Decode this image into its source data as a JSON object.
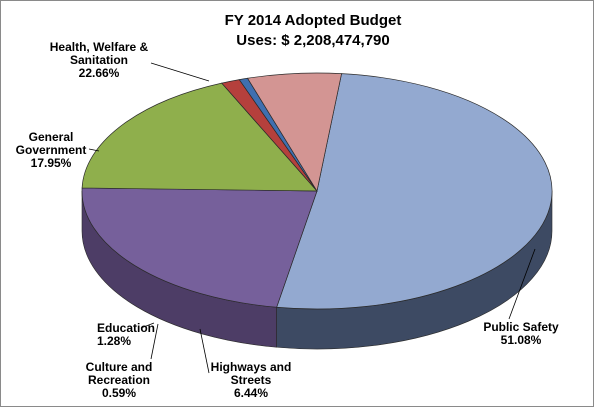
{
  "chart_data": {
    "type": "pie",
    "title": "FY 2014 Adopted Budget",
    "subtitle": "Uses: $ 2,208,474,790",
    "slices": [
      {
        "label_lines": [
          "Public Safety"
        ],
        "value": 51.08,
        "value_label": "51.08%",
        "color": "#93a9d0",
        "side_color": "#3d4a63"
      },
      {
        "label_lines": [
          "Health, Welfare &",
          "Sanitation"
        ],
        "value": 22.66,
        "value_label": "22.66%",
        "color": "#76609b",
        "side_color": "#4d3d66"
      },
      {
        "label_lines": [
          "General",
          "Government"
        ],
        "value": 17.95,
        "value_label": "17.95%",
        "color": "#8faf4c",
        "side_color": "#5e7530"
      },
      {
        "label_lines": [
          "Education"
        ],
        "value": 1.28,
        "value_label": "1.28%",
        "color": "#b5403c",
        "side_color": "#8a2b28"
      },
      {
        "label_lines": [
          "Culture and",
          "Recreation"
        ],
        "value": 0.59,
        "value_label": "0.59%",
        "color": "#3f6fb0",
        "side_color": "#2a4c7c"
      },
      {
        "label_lines": [
          "Highways and",
          "Streets"
        ],
        "value": 6.44,
        "value_label": "6.44%",
        "color": "#d39593",
        "side_color": "#a56a68"
      }
    ]
  }
}
